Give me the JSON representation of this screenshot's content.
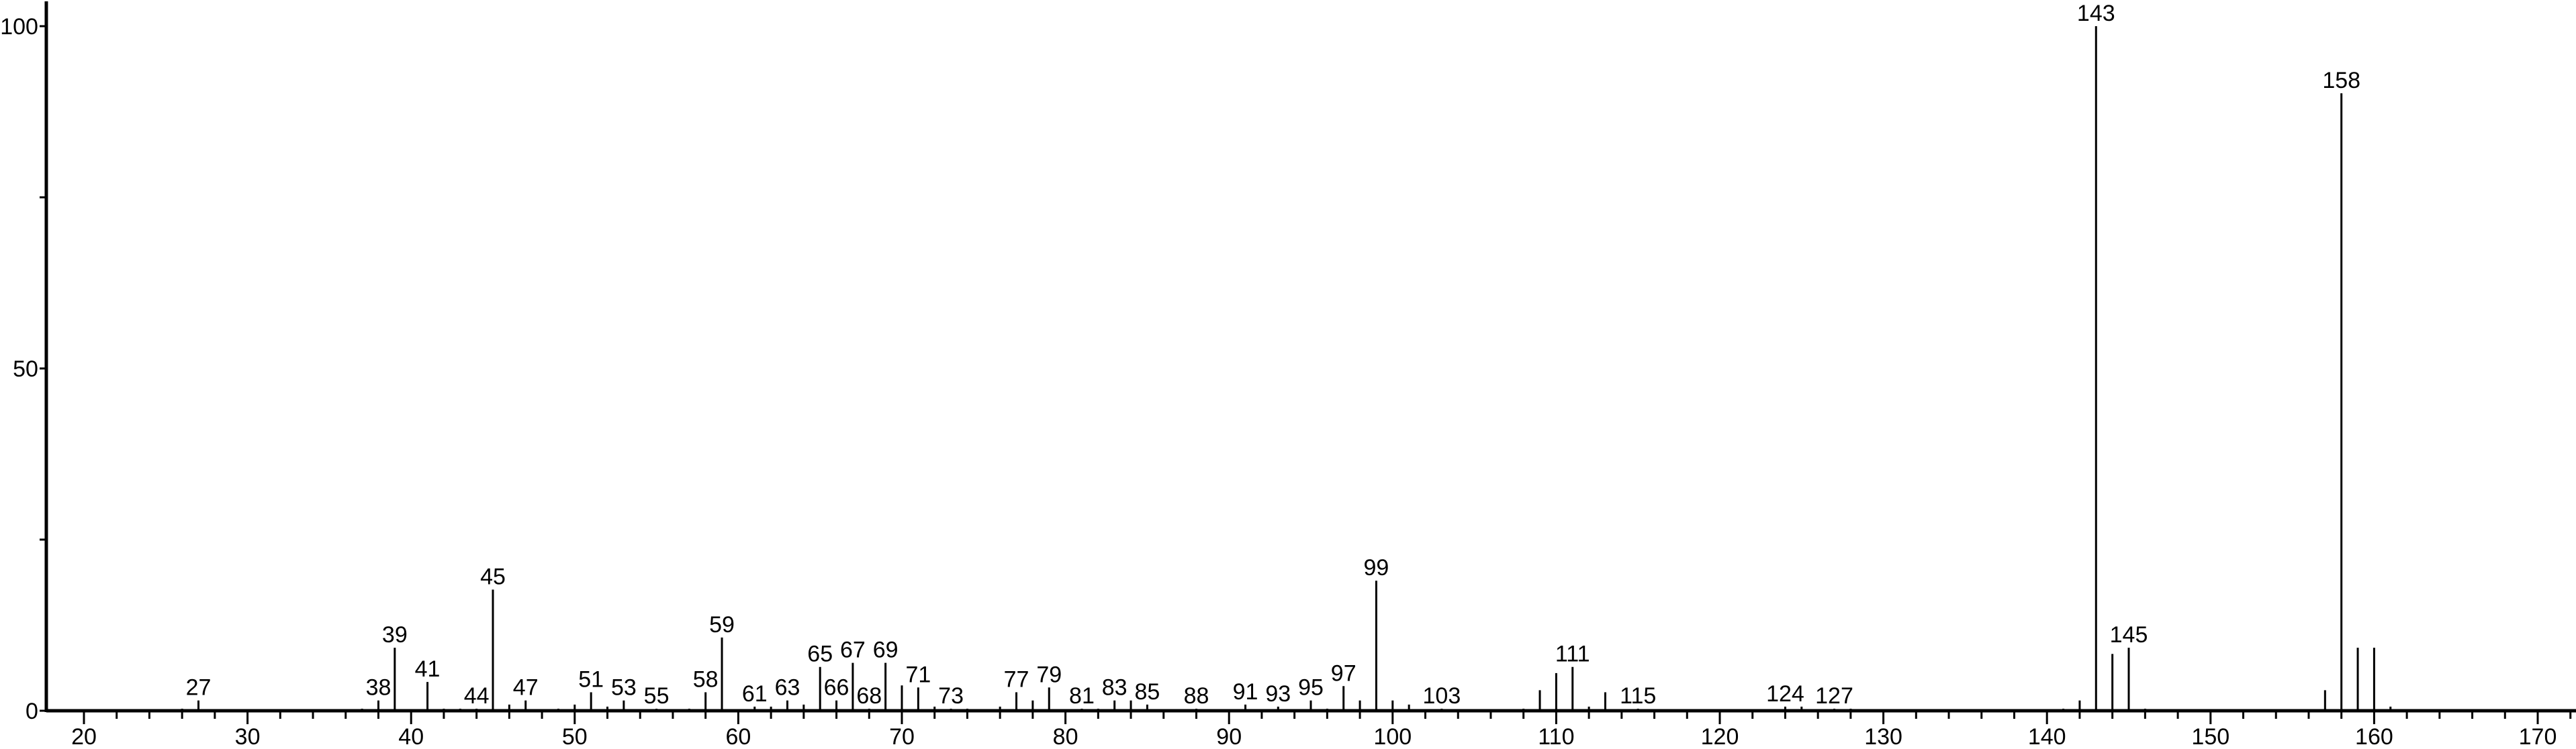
{
  "chart_data": {
    "type": "bar",
    "title": "",
    "xlabel": "",
    "ylabel": "",
    "xlim": [
      17.7,
      172.5
    ],
    "ylim": [
      0,
      100
    ],
    "grid": false,
    "x_ticks": [
      20,
      30,
      40,
      50,
      60,
      70,
      80,
      90,
      100,
      110,
      120,
      130,
      140,
      150,
      160,
      170
    ],
    "y_ticks": [
      0,
      50,
      100
    ],
    "peaks": [
      {
        "mz": 26,
        "intensity": 0.3
      },
      {
        "mz": 27,
        "intensity": 1.5,
        "label": "27"
      },
      {
        "mz": 37,
        "intensity": 0.3
      },
      {
        "mz": 38,
        "intensity": 1.5,
        "label": "38"
      },
      {
        "mz": 39,
        "intensity": 9.2,
        "label": "39"
      },
      {
        "mz": 41,
        "intensity": 4.2,
        "label": "41"
      },
      {
        "mz": 42,
        "intensity": 0.3
      },
      {
        "mz": 43,
        "intensity": 0.3
      },
      {
        "mz": 44,
        "intensity": 0.3,
        "label": "44"
      },
      {
        "mz": 45,
        "intensity": 17.7,
        "label": "45"
      },
      {
        "mz": 46,
        "intensity": 0.9
      },
      {
        "mz": 47,
        "intensity": 1.5,
        "label": "47"
      },
      {
        "mz": 49,
        "intensity": 0.3
      },
      {
        "mz": 50,
        "intensity": 0.9
      },
      {
        "mz": 51,
        "intensity": 2.7,
        "label": "51"
      },
      {
        "mz": 52,
        "intensity": 0.6
      },
      {
        "mz": 53,
        "intensity": 1.5,
        "label": "53"
      },
      {
        "mz": 55,
        "intensity": 0.3,
        "label": "55"
      },
      {
        "mz": 57,
        "intensity": 0.3
      },
      {
        "mz": 58,
        "intensity": 2.7,
        "label": "58"
      },
      {
        "mz": 59,
        "intensity": 10.7,
        "label": "59"
      },
      {
        "mz": 61,
        "intensity": 0.6,
        "label": "61"
      },
      {
        "mz": 62,
        "intensity": 0.6
      },
      {
        "mz": 63,
        "intensity": 1.5,
        "label": "63"
      },
      {
        "mz": 64,
        "intensity": 0.9
      },
      {
        "mz": 65,
        "intensity": 6.4,
        "label": "65"
      },
      {
        "mz": 66,
        "intensity": 1.5,
        "label": "66"
      },
      {
        "mz": 67,
        "intensity": 7.0,
        "label": "67"
      },
      {
        "mz": 68,
        "intensity": 0.3,
        "label": "68"
      },
      {
        "mz": 69,
        "intensity": 7.0,
        "label": "69"
      },
      {
        "mz": 70,
        "intensity": 3.7
      },
      {
        "mz": 71,
        "intensity": 3.4,
        "label": "71"
      },
      {
        "mz": 72,
        "intensity": 0.6
      },
      {
        "mz": 73,
        "intensity": 0.3,
        "label": "73"
      },
      {
        "mz": 74,
        "intensity": 0.3
      },
      {
        "mz": 76,
        "intensity": 0.6
      },
      {
        "mz": 77,
        "intensity": 2.7,
        "label": "77"
      },
      {
        "mz": 78,
        "intensity": 1.5
      },
      {
        "mz": 79,
        "intensity": 3.4,
        "label": "79"
      },
      {
        "mz": 81,
        "intensity": 0.3,
        "label": "81"
      },
      {
        "mz": 82,
        "intensity": 0.3
      },
      {
        "mz": 83,
        "intensity": 1.5,
        "label": "83"
      },
      {
        "mz": 84,
        "intensity": 1.5
      },
      {
        "mz": 85,
        "intensity": 0.9,
        "label": "85"
      },
      {
        "mz": 88,
        "intensity": 0.3,
        "label": "88"
      },
      {
        "mz": 91,
        "intensity": 0.9,
        "label": "91"
      },
      {
        "mz": 93,
        "intensity": 0.6,
        "label": "93"
      },
      {
        "mz": 95,
        "intensity": 1.5,
        "label": "95"
      },
      {
        "mz": 96,
        "intensity": 0.3
      },
      {
        "mz": 97,
        "intensity": 3.6,
        "label": "97"
      },
      {
        "mz": 98,
        "intensity": 1.5
      },
      {
        "mz": 99,
        "intensity": 19.0,
        "label": "99"
      },
      {
        "mz": 100,
        "intensity": 1.5
      },
      {
        "mz": 101,
        "intensity": 0.9
      },
      {
        "mz": 103,
        "intensity": 0.3,
        "label": "103"
      },
      {
        "mz": 108,
        "intensity": 0.3
      },
      {
        "mz": 109,
        "intensity": 3.0
      },
      {
        "mz": 110,
        "intensity": 5.5
      },
      {
        "mz": 111,
        "intensity": 6.4,
        "label": "111"
      },
      {
        "mz": 112,
        "intensity": 0.6
      },
      {
        "mz": 113,
        "intensity": 2.7
      },
      {
        "mz": 115,
        "intensity": 0.3,
        "label": "115"
      },
      {
        "mz": 124,
        "intensity": 0.6,
        "label": "124"
      },
      {
        "mz": 125,
        "intensity": 0.6
      },
      {
        "mz": 127,
        "intensity": 0.3,
        "label": "127"
      },
      {
        "mz": 128,
        "intensity": 0.3
      },
      {
        "mz": 141,
        "intensity": 0.3
      },
      {
        "mz": 142,
        "intensity": 1.5
      },
      {
        "mz": 143,
        "intensity": 100,
        "label": "143"
      },
      {
        "mz": 144,
        "intensity": 8.3
      },
      {
        "mz": 145,
        "intensity": 9.2,
        "label": "145"
      },
      {
        "mz": 146,
        "intensity": 0.3
      },
      {
        "mz": 157,
        "intensity": 3.0
      },
      {
        "mz": 158,
        "intensity": 90.2,
        "label": "158"
      },
      {
        "mz": 159,
        "intensity": 9.2
      },
      {
        "mz": 160,
        "intensity": 9.2
      },
      {
        "mz": 161,
        "intensity": 0.6
      }
    ],
    "colors": {
      "line": "#000000",
      "background": "#ffffff"
    }
  }
}
